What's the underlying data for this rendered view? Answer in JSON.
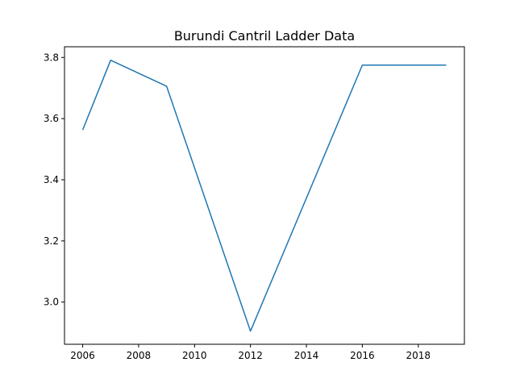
{
  "chart_data": {
    "type": "line",
    "title": "Burundi Cantril Ladder Data",
    "xlabel": "",
    "ylabel": "",
    "x": [
      2006,
      2007,
      2009,
      2012,
      2016,
      2019
    ],
    "series": [
      {
        "values": [
          3.563,
          3.791,
          3.706,
          2.905,
          3.775,
          3.775
        ]
      }
    ],
    "xlim": [
      2005.35,
      2019.65
    ],
    "ylim": [
      2.862,
      3.835
    ],
    "xticks": [
      2006,
      2008,
      2010,
      2012,
      2014,
      2016,
      2018
    ],
    "yticks": [
      3.0,
      3.2,
      3.4,
      3.6,
      3.8
    ],
    "ytick_labels": [
      "3.0",
      "3.2",
      "3.4",
      "3.6",
      "3.8"
    ],
    "grid": false,
    "line_color": "#1f77b4"
  }
}
